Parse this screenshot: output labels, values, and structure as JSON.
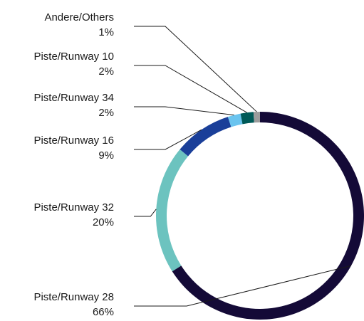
{
  "chart_data": {
    "type": "pie",
    "variant": "donut",
    "start": "top, clockwise",
    "slices": [
      {
        "label": "Piste/Runway 28",
        "value": 66,
        "value_label": "66%",
        "color": "#140a37"
      },
      {
        "label": "Piste/Runway 32",
        "value": 20,
        "value_label": "20%",
        "color": "#6cc3bf"
      },
      {
        "label": "Piste/Runway 16",
        "value": 9,
        "value_label": "9%",
        "color": "#1a3f99"
      },
      {
        "label": "Piste/Runway 34",
        "value": 2,
        "value_label": "2%",
        "color": "#6ac4ef"
      },
      {
        "label": "Piste/Runway 10",
        "value": 2,
        "value_label": "2%",
        "color": "#005a58"
      },
      {
        "label": "Andere/Others",
        "value": 1,
        "value_label": "1%",
        "color": "#9c9c9c"
      }
    ],
    "label_placement": "left, with leader lines"
  }
}
